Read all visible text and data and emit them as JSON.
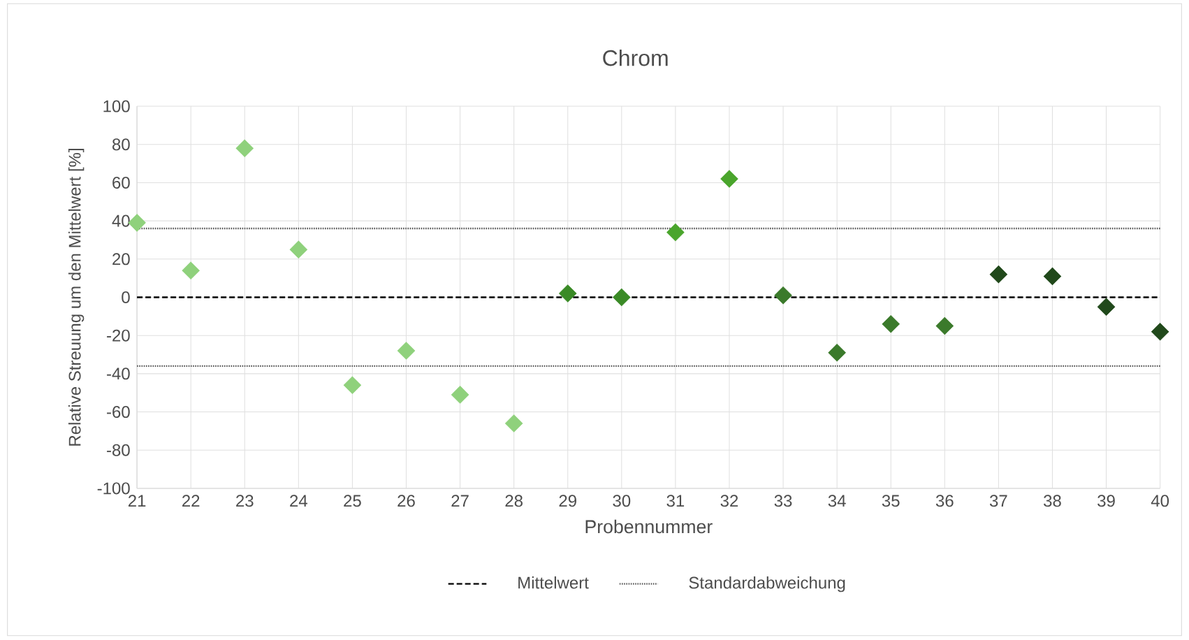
{
  "chart_data": {
    "type": "scatter",
    "title": "Chrom",
    "xlabel": "Probennummer",
    "ylabel": "Relative Streuung um den Mittelwert [%]",
    "categories": [
      "21",
      "22",
      "23",
      "24",
      "25",
      "26",
      "27",
      "28",
      "29",
      "30",
      "31",
      "32",
      "33",
      "34",
      "35",
      "36",
      "37",
      "38",
      "39",
      "40"
    ],
    "values": [
      39,
      14,
      78,
      25,
      -46,
      -28,
      -51,
      -66,
      2,
      0,
      34,
      62,
      1,
      -29,
      -14,
      -15,
      12,
      11,
      -5,
      -18
    ],
    "colors": [
      "#8fd17c",
      "#8fd17c",
      "#8fd17c",
      "#8fd17c",
      "#8fd17c",
      "#8fd17c",
      "#8fd17c",
      "#8fd17c",
      "#3a8a26",
      "#3a8a26",
      "#4aa52c",
      "#4aa52c",
      "#3b7a2b",
      "#3b7a2b",
      "#3b7a2b",
      "#3b7a2b",
      "#21491b",
      "#21491b",
      "#21491b",
      "#21491b"
    ],
    "marker": "diamond",
    "ylim": [
      -100,
      100
    ],
    "yticks": [
      100,
      80,
      60,
      40,
      20,
      0,
      -20,
      -40,
      -60,
      -80,
      -100
    ],
    "grid": true,
    "legend": "bottom",
    "ref_lines": [
      {
        "axis": "y",
        "value": 0,
        "label": "Mittelwert",
        "color": "#000000",
        "line_style": "dashed"
      },
      {
        "axis": "y",
        "value": 36,
        "label": "Standardabweichung",
        "color": "#555555",
        "line_style": "dotted"
      },
      {
        "axis": "y",
        "value": -36,
        "color": "#555555",
        "line_style": "dotted"
      }
    ]
  }
}
